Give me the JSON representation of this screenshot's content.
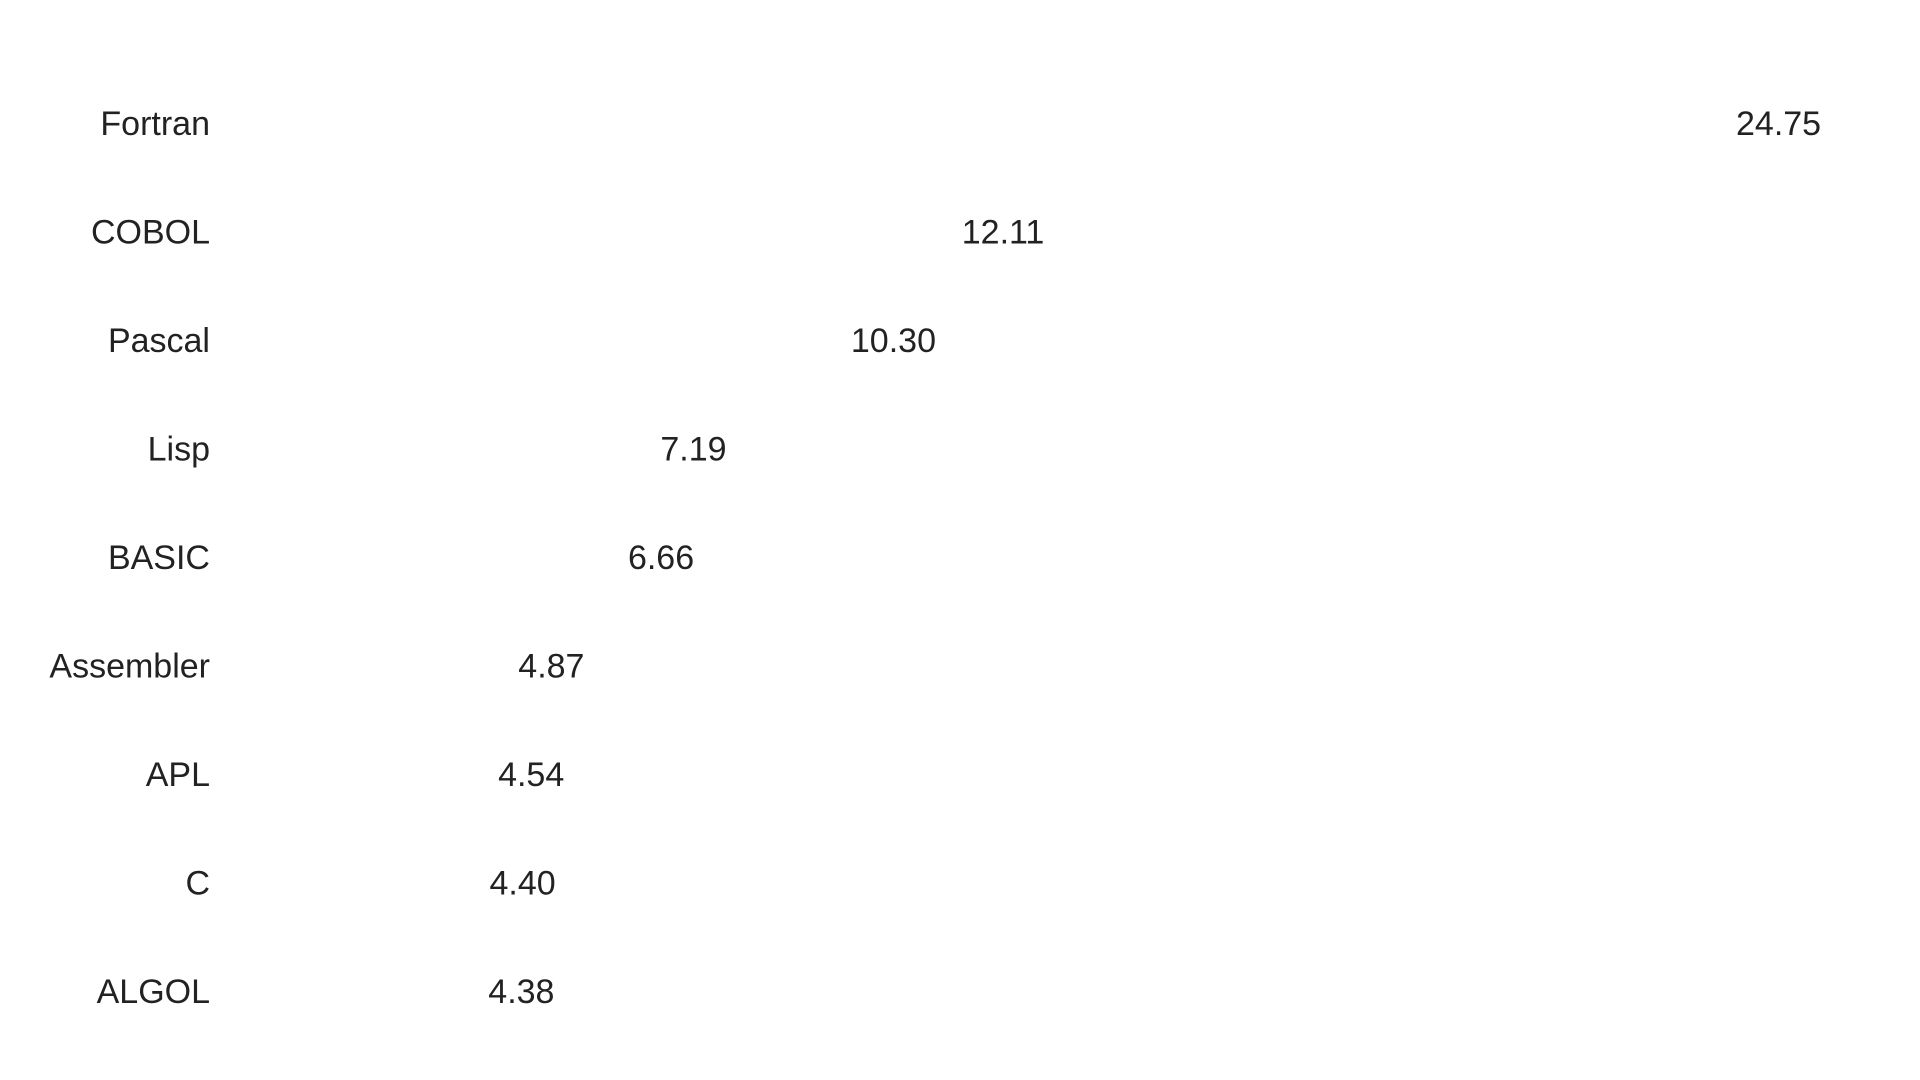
{
  "chart_data": {
    "type": "bar",
    "title": "",
    "xlabel": "",
    "ylabel": "",
    "orientation": "horizontal",
    "categories": [
      "Fortran",
      "COBOL",
      "Pascal",
      "Lisp",
      "BASIC",
      "Assembler",
      "APL",
      "C",
      "ALGOL"
    ],
    "values": [
      24.75,
      12.11,
      10.3,
      7.19,
      6.66,
      4.87,
      4.54,
      4.4,
      4.38
    ],
    "value_labels": [
      "24.75",
      "12.11",
      "10.30",
      "7.19",
      "6.66",
      "4.87",
      "4.54",
      "4.40",
      "4.38"
    ],
    "xlim": [
      0,
      24.75
    ],
    "bar_color": "#ffffff",
    "text_color": "#222222",
    "grid": false,
    "legend": "none"
  }
}
